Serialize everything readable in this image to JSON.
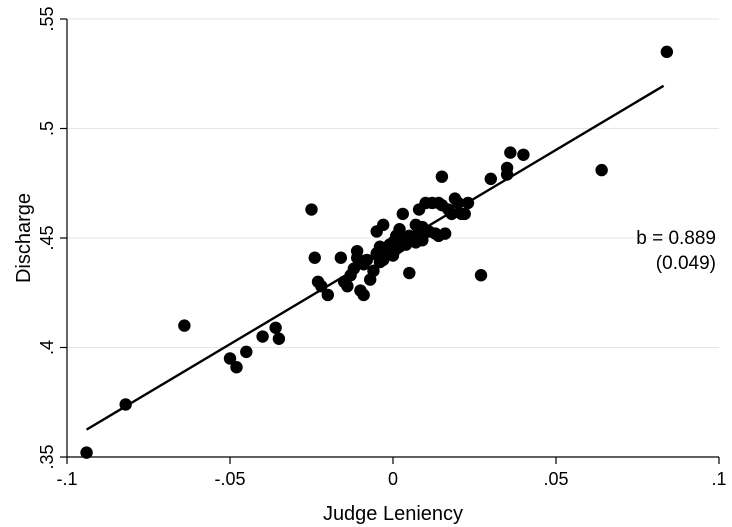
{
  "chart_data": {
    "type": "scatter",
    "title": "",
    "xlabel": "Judge Leniency",
    "ylabel": "Discharge",
    "xlim": [
      -0.1,
      0.1
    ],
    "ylim": [
      0.35,
      0.55
    ],
    "xticks": [
      -0.1,
      -0.05,
      0,
      0.05,
      0.1
    ],
    "xtick_labels": [
      "-.1",
      "-.05",
      "0",
      ".05",
      ".1"
    ],
    "yticks": [
      0.35,
      0.4,
      0.45,
      0.5,
      0.55
    ],
    "ytick_labels": [
      ".35",
      ".4",
      ".45",
      ".5",
      ".55"
    ],
    "grid": "horizontal",
    "legend": "none",
    "colors": {
      "points": "#000000",
      "fit_line": "#000000",
      "grid": "#e6e6e6",
      "axis": "#000000"
    },
    "annotation": {
      "line1": "b = 0.889",
      "line2": "(0.049)"
    },
    "fit_line": {
      "x": [
        -0.094,
        0.083
      ],
      "y": [
        0.3625,
        0.5195
      ]
    },
    "series": [
      {
        "points": [
          [
            -0.094,
            0.352
          ],
          [
            -0.082,
            0.374
          ],
          [
            -0.064,
            0.41
          ],
          [
            -0.05,
            0.395
          ],
          [
            -0.048,
            0.391
          ],
          [
            -0.045,
            0.398
          ],
          [
            -0.04,
            0.405
          ],
          [
            -0.036,
            0.409
          ],
          [
            -0.035,
            0.404
          ],
          [
            -0.025,
            0.463
          ],
          [
            -0.024,
            0.441
          ],
          [
            -0.023,
            0.43
          ],
          [
            -0.022,
            0.428
          ],
          [
            -0.02,
            0.424
          ],
          [
            -0.016,
            0.441
          ],
          [
            -0.015,
            0.43
          ],
          [
            -0.014,
            0.428
          ],
          [
            -0.013,
            0.433
          ],
          [
            -0.012,
            0.436
          ],
          [
            -0.011,
            0.441
          ],
          [
            -0.011,
            0.444
          ],
          [
            -0.01,
            0.426
          ],
          [
            -0.009,
            0.424
          ],
          [
            -0.009,
            0.438
          ],
          [
            -0.008,
            0.44
          ],
          [
            -0.007,
            0.431
          ],
          [
            -0.006,
            0.435
          ],
          [
            -0.005,
            0.443
          ],
          [
            -0.005,
            0.453
          ],
          [
            -0.004,
            0.446
          ],
          [
            -0.004,
            0.439
          ],
          [
            -0.003,
            0.44
          ],
          [
            -0.003,
            0.456
          ],
          [
            -0.002,
            0.443
          ],
          [
            -0.001,
            0.447
          ],
          [
            0.0,
            0.442
          ],
          [
            0.0,
            0.448
          ],
          [
            0.001,
            0.451
          ],
          [
            0.001,
            0.445
          ],
          [
            0.002,
            0.454
          ],
          [
            0.002,
            0.446
          ],
          [
            0.003,
            0.449
          ],
          [
            0.003,
            0.461
          ],
          [
            0.004,
            0.447
          ],
          [
            0.005,
            0.451
          ],
          [
            0.005,
            0.434
          ],
          [
            0.006,
            0.449
          ],
          [
            0.007,
            0.448
          ],
          [
            0.007,
            0.456
          ],
          [
            0.008,
            0.453
          ],
          [
            0.008,
            0.463
          ],
          [
            0.009,
            0.449
          ],
          [
            0.009,
            0.455
          ],
          [
            0.01,
            0.466
          ],
          [
            0.011,
            0.453
          ],
          [
            0.012,
            0.466
          ],
          [
            0.013,
            0.452
          ],
          [
            0.014,
            0.451
          ],
          [
            0.014,
            0.466
          ],
          [
            0.015,
            0.478
          ],
          [
            0.015,
            0.465
          ],
          [
            0.016,
            0.452
          ],
          [
            0.017,
            0.463
          ],
          [
            0.018,
            0.461
          ],
          [
            0.019,
            0.468
          ],
          [
            0.02,
            0.466
          ],
          [
            0.021,
            0.461
          ],
          [
            0.022,
            0.461
          ],
          [
            0.023,
            0.466
          ],
          [
            0.027,
            0.433
          ],
          [
            0.03,
            0.477
          ],
          [
            0.035,
            0.479
          ],
          [
            0.035,
            0.482
          ],
          [
            0.036,
            0.489
          ],
          [
            0.04,
            0.488
          ],
          [
            0.064,
            0.481
          ],
          [
            0.084,
            0.535
          ]
        ]
      }
    ]
  }
}
